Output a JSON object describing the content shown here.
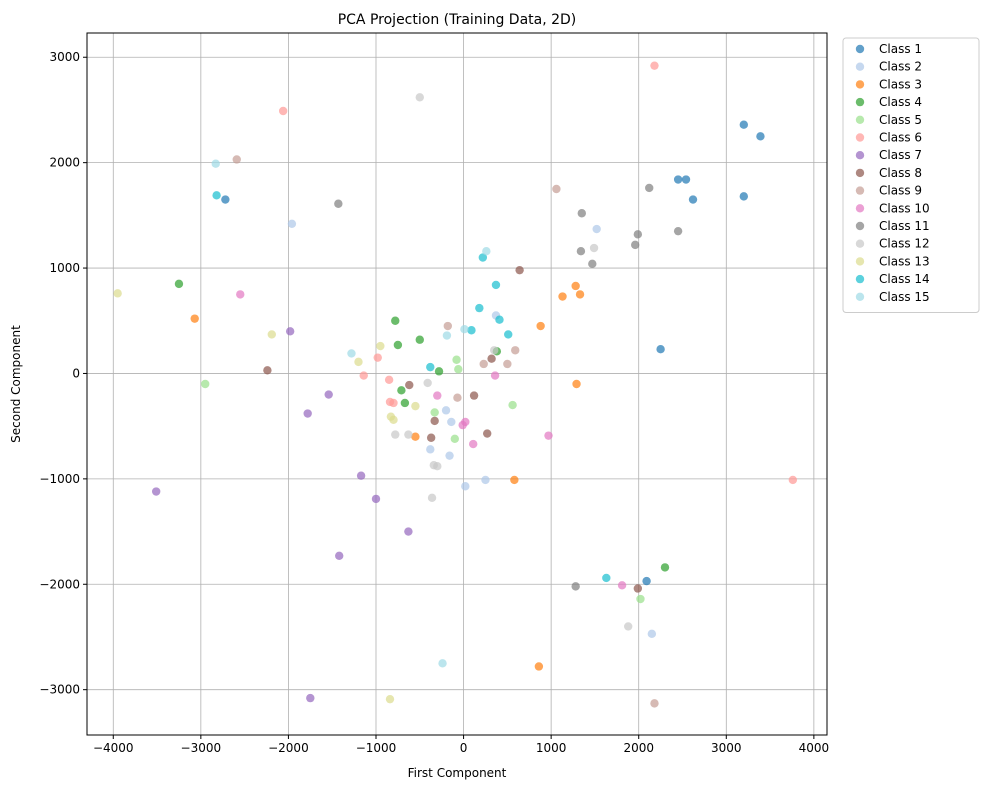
{
  "chart_data": {
    "type": "scatter",
    "title": "PCA Projection (Training Data, 2D)",
    "xlabel": "First Component",
    "ylabel": "Second Component",
    "xlim": [
      -4300,
      4150
    ],
    "ylim": [
      -3430,
      3230
    ],
    "xticks": [
      -4000,
      -3000,
      -2000,
      -1000,
      0,
      1000,
      2000,
      3000,
      4000
    ],
    "yticks": [
      -3000,
      -2000,
      -1000,
      0,
      1000,
      2000,
      3000
    ],
    "grid": true,
    "legend_position": "outside-top-right",
    "series": [
      {
        "name": "Class 1",
        "color": "#1f77b4",
        "points": [
          [
            3200,
            2360
          ],
          [
            3390,
            2250
          ],
          [
            2450,
            1840
          ],
          [
            2540,
            1840
          ],
          [
            3200,
            1680
          ],
          [
            2620,
            1650
          ],
          [
            -2720,
            1650
          ],
          [
            2250,
            230
          ],
          [
            2090,
            -1970
          ]
        ]
      },
      {
        "name": "Class 2",
        "color": "#aec7e8",
        "points": [
          [
            -1960,
            1420
          ],
          [
            1520,
            1370
          ],
          [
            370,
            550
          ],
          [
            -200,
            -350
          ],
          [
            -140,
            -460
          ],
          [
            -380,
            -720
          ],
          [
            -160,
            -780
          ],
          [
            250,
            -1010
          ],
          [
            20,
            -1070
          ],
          [
            2150,
            -2470
          ]
        ]
      },
      {
        "name": "Class 3",
        "color": "#ff7f0e",
        "points": [
          [
            -3070,
            520
          ],
          [
            1280,
            830
          ],
          [
            1130,
            730
          ],
          [
            1330,
            750
          ],
          [
            880,
            450
          ],
          [
            1290,
            -100
          ],
          [
            -550,
            -600
          ],
          [
            580,
            -1010
          ],
          [
            860,
            -2780
          ]
        ]
      },
      {
        "name": "Class 4",
        "color": "#2ca02c",
        "points": [
          [
            -3250,
            850
          ],
          [
            -780,
            500
          ],
          [
            -500,
            320
          ],
          [
            -750,
            270
          ],
          [
            380,
            210
          ],
          [
            -280,
            20
          ],
          [
            -710,
            -160
          ],
          [
            -670,
            -280
          ],
          [
            2300,
            -1840
          ]
        ]
      },
      {
        "name": "Class 5",
        "color": "#98df8a",
        "points": [
          [
            -2950,
            -100
          ],
          [
            -80,
            130
          ],
          [
            -60,
            40
          ],
          [
            -330,
            -370
          ],
          [
            560,
            -300
          ],
          [
            -100,
            -620
          ],
          [
            2020,
            -2140
          ]
        ]
      },
      {
        "name": "Class 6",
        "color": "#ff9896",
        "points": [
          [
            2180,
            2920
          ],
          [
            -2060,
            2490
          ],
          [
            -980,
            150
          ],
          [
            -1140,
            -20
          ],
          [
            -850,
            -60
          ],
          [
            -840,
            -270
          ],
          [
            -800,
            -280
          ],
          [
            3760,
            -1010
          ]
        ]
      },
      {
        "name": "Class 7",
        "color": "#9467bd",
        "points": [
          [
            -1980,
            400
          ],
          [
            -1540,
            -200
          ],
          [
            -1780,
            -380
          ],
          [
            -1170,
            -970
          ],
          [
            -1000,
            -1190
          ],
          [
            -3510,
            -1120
          ],
          [
            -630,
            -1500
          ],
          [
            -1420,
            -1730
          ],
          [
            -1750,
            -3080
          ]
        ]
      },
      {
        "name": "Class 8",
        "color": "#8c564b",
        "points": [
          [
            640,
            980
          ],
          [
            320,
            140
          ],
          [
            -2240,
            30
          ],
          [
            -620,
            -110
          ],
          [
            120,
            -210
          ],
          [
            -330,
            -450
          ],
          [
            -370,
            -610
          ],
          [
            270,
            -570
          ],
          [
            1990,
            -2040
          ]
        ]
      },
      {
        "name": "Class 9",
        "color": "#c49c94",
        "points": [
          [
            -2590,
            2030
          ],
          [
            1060,
            1750
          ],
          [
            -180,
            450
          ],
          [
            590,
            220
          ],
          [
            230,
            90
          ],
          [
            500,
            90
          ],
          [
            -70,
            -230
          ],
          [
            2180,
            -3130
          ]
        ]
      },
      {
        "name": "Class 10",
        "color": "#e377c2",
        "points": [
          [
            -2550,
            750
          ],
          [
            360,
            -20
          ],
          [
            -300,
            -210
          ],
          [
            20,
            -460
          ],
          [
            -10,
            -490
          ],
          [
            110,
            -670
          ],
          [
            970,
            -590
          ],
          [
            1810,
            -2010
          ]
        ]
      },
      {
        "name": "Class 11",
        "color": "#7f7f7f",
        "points": [
          [
            -1430,
            1610
          ],
          [
            2120,
            1760
          ],
          [
            1350,
            1520
          ],
          [
            1990,
            1320
          ],
          [
            2450,
            1350
          ],
          [
            1340,
            1160
          ],
          [
            1960,
            1220
          ],
          [
            1470,
            1040
          ],
          [
            1280,
            -2020
          ]
        ]
      },
      {
        "name": "Class 12",
        "color": "#c7c7c7",
        "points": [
          [
            -500,
            2620
          ],
          [
            1490,
            1190
          ],
          [
            350,
            220
          ],
          [
            -410,
            -90
          ],
          [
            -780,
            -580
          ],
          [
            -630,
            -580
          ],
          [
            -340,
            -870
          ],
          [
            -300,
            -880
          ],
          [
            -360,
            -1180
          ],
          [
            1880,
            -2400
          ]
        ]
      },
      {
        "name": "Class 13",
        "color": "#dbdb8d",
        "points": [
          [
            -3950,
            760
          ],
          [
            -2190,
            370
          ],
          [
            -950,
            260
          ],
          [
            -1200,
            110
          ],
          [
            -550,
            -310
          ],
          [
            -830,
            -410
          ],
          [
            -800,
            -440
          ],
          [
            -840,
            -3090
          ]
        ]
      },
      {
        "name": "Class 14",
        "color": "#17becf",
        "points": [
          [
            -2820,
            1690
          ],
          [
            220,
            1100
          ],
          [
            370,
            840
          ],
          [
            -380,
            60
          ],
          [
            180,
            620
          ],
          [
            90,
            410
          ],
          [
            410,
            510
          ],
          [
            510,
            370
          ],
          [
            1630,
            -1940
          ]
        ]
      },
      {
        "name": "Class 15",
        "color": "#9edae5",
        "points": [
          [
            -2830,
            1990
          ],
          [
            260,
            1160
          ],
          [
            10,
            420
          ],
          [
            -190,
            360
          ],
          [
            -1280,
            190
          ],
          [
            -240,
            -2750
          ]
        ]
      }
    ]
  }
}
